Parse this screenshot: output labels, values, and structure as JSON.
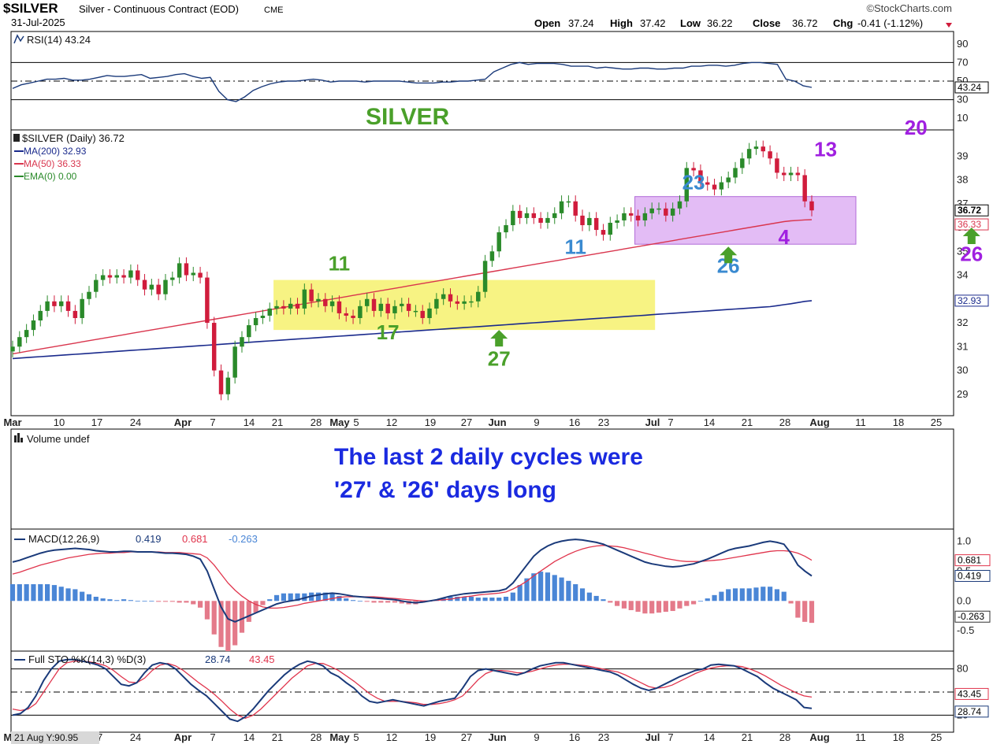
{
  "header": {
    "symbol": "$SILVER",
    "name": "Silver - Continuous Contract (EOD)",
    "exchange": "CME",
    "date": "31-Jul-2025",
    "brand": "©StockCharts.com",
    "open_label": "Open",
    "open": "37.24",
    "high_label": "High",
    "high": "37.42",
    "low_label": "Low",
    "low": "36.22",
    "close_label": "Close",
    "close": "36.72",
    "chg_label": "Chg",
    "chg": "-0.41 (-1.12%)"
  },
  "status": {
    "cursor_readout": "21 Aug Y:90.95"
  },
  "colors": {
    "up": "#2a8a2a",
    "down": "#d01c3c",
    "ma200": "#1a2a8c",
    "ma50": "#d9364e",
    "macd": "#1a3a7a",
    "signal": "#e0344c",
    "hist_pos": "#4a86d6",
    "hist_neg": "#e47a8a",
    "green_ann": "#4aa02a",
    "blue_ann": "#3a8ad0",
    "purple_ann": "#a020e0",
    "yellow_box": "#f4ef5a",
    "purple_box": "#d9a6f2"
  },
  "chart_data": [
    {
      "type": "line",
      "panel": "rsi",
      "legend": "RSI(14) 43.24",
      "ylim": [
        0,
        100
      ],
      "yticks": [
        "90",
        "70",
        "50",
        "30",
        "10"
      ],
      "levels": [
        70,
        30
      ],
      "last_tag": "43.24",
      "values": [
        42,
        46,
        48,
        50,
        52,
        52,
        53,
        51,
        51,
        52,
        54,
        56,
        55,
        55,
        56,
        57,
        53,
        54,
        55,
        57,
        58,
        55,
        53,
        54,
        39,
        30,
        28,
        33,
        40,
        44,
        47,
        49,
        50,
        50,
        51,
        52,
        51,
        49,
        50,
        50,
        50,
        49,
        50,
        50,
        50,
        50,
        49,
        48,
        48,
        48,
        49,
        49,
        50,
        50,
        51,
        52,
        60,
        64,
        68,
        70,
        68,
        69,
        69,
        69,
        68,
        66,
        66,
        66,
        64,
        65,
        64,
        63,
        63,
        64,
        64,
        63,
        63,
        64,
        64,
        66,
        66,
        67,
        67,
        66,
        67,
        69,
        70,
        70,
        69,
        68,
        52,
        50,
        45,
        43.24
      ]
    },
    {
      "type": "candlestick",
      "panel": "price",
      "title": "SILVER",
      "legend": {
        "main": "$SILVER (Daily) 36.72",
        "ma200": "MA(200) 32.93",
        "ma50": "MA(50) 36.33",
        "ema": "EMA(0) 0.00"
      },
      "ylim": [
        28.2,
        40.0
      ],
      "yticks": [
        "39",
        "38",
        "37",
        "36",
        "35",
        "34",
        "33",
        "32",
        "31",
        "30",
        "29"
      ],
      "last_close_tag": "36.72",
      "ma50_tag": "36.33",
      "ma200_tag": "32.93",
      "closes": [
        31.0,
        31.4,
        31.7,
        32.1,
        32.5,
        32.9,
        32.7,
        32.9,
        32.5,
        32.2,
        33.0,
        33.3,
        33.8,
        34.0,
        33.9,
        34.0,
        33.9,
        34.2,
        33.8,
        33.4,
        33.6,
        33.2,
        33.8,
        33.9,
        34.5,
        34.0,
        34.1,
        33.9,
        32.0,
        30.0,
        29.0,
        29.7,
        31.0,
        31.4,
        31.9,
        32.2,
        32.3,
        32.6,
        32.7,
        32.6,
        32.8,
        32.6,
        33.4,
        32.9,
        33.0,
        32.7,
        32.9,
        32.4,
        32.3,
        32.2,
        32.7,
        33.0,
        32.5,
        32.8,
        32.4,
        32.7,
        32.8,
        32.5,
        32.5,
        32.2,
        32.6,
        33.0,
        33.2,
        32.9,
        32.8,
        32.9,
        32.9,
        33.3,
        34.6,
        35.0,
        35.8,
        36.1,
        36.7,
        36.4,
        36.6,
        36.4,
        36.2,
        36.4,
        36.6,
        37.1,
        37.1,
        36.5,
        36.1,
        36.4,
        35.9,
        35.7,
        36.2,
        36.3,
        36.6,
        36.5,
        36.3,
        36.6,
        36.8,
        36.8,
        36.5,
        36.8,
        37.1,
        38.5,
        38.4,
        37.9,
        37.8,
        37.6,
        37.9,
        38.1,
        38.5,
        38.9,
        39.3,
        39.4,
        39.2,
        38.9,
        38.3,
        38.2,
        38.3,
        38.2,
        37.1,
        36.72
      ],
      "ma50": [
        30.7,
        30.75,
        30.8,
        30.85,
        30.9,
        30.95,
        31.0,
        31.05,
        31.1,
        31.15,
        31.2,
        31.25,
        31.3,
        31.35,
        31.4,
        31.45,
        31.5,
        31.55,
        31.6,
        31.65,
        31.7,
        31.75,
        31.8,
        31.85,
        31.9,
        31.95,
        32.0,
        32.05,
        32.1,
        32.15,
        32.2,
        32.25,
        32.3,
        32.35,
        32.4,
        32.45,
        32.5,
        32.55,
        32.6,
        32.65,
        32.7,
        32.75,
        32.8,
        32.85,
        32.9,
        32.95,
        33.0,
        33.05,
        33.1,
        33.15,
        33.2,
        33.25,
        33.3,
        33.35,
        33.4,
        33.45,
        33.5,
        33.55,
        33.6,
        33.65,
        33.7,
        33.75,
        33.8,
        33.85,
        33.9,
        33.95,
        34.0,
        34.05,
        34.1,
        34.15,
        34.2,
        34.25,
        34.3,
        34.35,
        34.4,
        34.45,
        34.5,
        34.55,
        34.6,
        34.65,
        34.7,
        34.75,
        34.8,
        34.85,
        34.9,
        34.95,
        35.0,
        35.05,
        35.1,
        35.15,
        35.2,
        35.25,
        35.3,
        35.35,
        35.4,
        35.45,
        35.5,
        35.55,
        35.6,
        35.65,
        35.7,
        35.75,
        35.8,
        35.85,
        35.9,
        35.95,
        36.0,
        36.05,
        36.1,
        36.15,
        36.2,
        36.25,
        36.28,
        36.3,
        36.32,
        36.33
      ],
      "ma200": [
        30.5,
        30.52,
        30.54,
        30.56,
        30.58,
        30.6,
        30.62,
        30.64,
        30.66,
        30.68,
        30.7,
        30.72,
        30.74,
        30.76,
        30.78,
        30.8,
        30.82,
        30.84,
        30.86,
        30.88,
        30.9,
        30.92,
        30.94,
        30.96,
        30.98,
        31.0,
        31.02,
        31.04,
        31.06,
        31.08,
        31.1,
        31.12,
        31.14,
        31.16,
        31.18,
        31.2,
        31.22,
        31.24,
        31.26,
        31.28,
        31.3,
        31.32,
        31.34,
        31.36,
        31.38,
        31.4,
        31.42,
        31.44,
        31.46,
        31.48,
        31.5,
        31.52,
        31.54,
        31.56,
        31.58,
        31.6,
        31.62,
        31.64,
        31.66,
        31.68,
        31.7,
        31.72,
        31.74,
        31.76,
        31.78,
        31.8,
        31.82,
        31.84,
        31.86,
        31.88,
        31.9,
        31.92,
        31.94,
        31.96,
        31.98,
        32.0,
        32.02,
        32.04,
        32.06,
        32.08,
        32.1,
        32.12,
        32.14,
        32.16,
        32.18,
        32.2,
        32.22,
        32.24,
        32.26,
        32.28,
        32.3,
        32.32,
        32.34,
        32.36,
        32.38,
        32.4,
        32.42,
        32.44,
        32.46,
        32.48,
        32.5,
        32.52,
        32.54,
        32.56,
        32.58,
        32.6,
        32.62,
        32.64,
        32.66,
        32.68,
        32.72,
        32.76,
        32.8,
        32.85,
        32.9,
        32.93
      ],
      "boxes": [
        {
          "name": "yellow-range-box",
          "i0": 38,
          "i1": 92,
          "y0": 31.7,
          "y1": 33.8,
          "color": "#f4ef5a"
        },
        {
          "name": "purple-range-box",
          "i0": 90,
          "i1": 154,
          "y0": 35.3,
          "y1": 37.3,
          "color": "#d9a6f2"
        }
      ],
      "labels": [
        {
          "text": "11",
          "i": 47,
          "y": 34.2,
          "color": "#4aa02a",
          "size": 26
        },
        {
          "text": "17",
          "i": 54,
          "y": 31.3,
          "color": "#4aa02a",
          "size": 26
        },
        {
          "text": "27",
          "i": 70,
          "y": 30.2,
          "color": "#4aa02a",
          "size": 26
        },
        {
          "text": "11",
          "i": 81,
          "y": 34.9,
          "color": "#3a8ad0",
          "size": 26
        },
        {
          "text": "23",
          "i": 98,
          "y": 37.6,
          "color": "#3a8ad0",
          "size": 26
        },
        {
          "text": "26",
          "i": 103,
          "y": 34.1,
          "color": "#3a8ad0",
          "size": 26
        },
        {
          "text": "4",
          "i": 111,
          "y": 35.3,
          "color": "#a020e0",
          "size": 26
        },
        {
          "text": "13",
          "i": 117,
          "y": 39.0,
          "color": "#a020e0",
          "size": 26
        },
        {
          "text": "20",
          "i": 130,
          "y": 39.9,
          "color": "#a020e0",
          "size": 26
        },
        {
          "text": "26",
          "i": 138,
          "y": 34.6,
          "color": "#a020e0",
          "size": 26
        }
      ],
      "arrows": [
        {
          "name": "cycle-low-arrow-27",
          "i": 70,
          "y": 31.7,
          "color": "#4aa02a"
        },
        {
          "name": "cycle-low-arrow-26",
          "i": 103,
          "y": 35.2,
          "color": "#4aa02a"
        },
        {
          "name": "cycle-low-arrow-26b",
          "i": 138,
          "y": 36.0,
          "color": "#4aa02a"
        }
      ],
      "xticks": [
        "Mar",
        "10",
        "17",
        "24",
        "Apr",
        "7",
        "14",
        "21",
        "28",
        "May",
        "5",
        "12",
        "19",
        "27",
        "Jun",
        "9",
        "16",
        "23",
        "Jul",
        "7",
        "14",
        "21",
        "28",
        "Aug",
        "11",
        "18",
        "25"
      ]
    },
    {
      "type": "bar",
      "panel": "volume",
      "legend": "Volume undef",
      "annotation_line1": "The last 2 daily cycles were",
      "annotation_line2": "'27' & '26' days long"
    },
    {
      "type": "line",
      "panel": "macd",
      "legend_prefix": "MACD(12,26,9)",
      "legend_macd": "0.419",
      "legend_signal": "0.681",
      "legend_hist": "-0.263",
      "ylim": [
        -0.8,
        1.15
      ],
      "yticks": [
        "1.0",
        "0.5",
        "0.0",
        "-0.5"
      ],
      "macd": [
        0.65,
        0.68,
        0.72,
        0.76,
        0.8,
        0.83,
        0.85,
        0.86,
        0.87,
        0.88,
        0.87,
        0.86,
        0.84,
        0.83,
        0.82,
        0.82,
        0.83,
        0.83,
        0.82,
        0.82,
        0.82,
        0.81,
        0.8,
        0.8,
        0.79,
        0.78,
        0.75,
        0.7,
        0.5,
        0.2,
        -0.1,
        -0.3,
        -0.35,
        -0.3,
        -0.25,
        -0.2,
        -0.15,
        -0.1,
        -0.05,
        -0.02,
        0.0,
        0.02,
        0.05,
        0.08,
        0.1,
        0.12,
        0.13,
        0.12,
        0.1,
        0.08,
        0.07,
        0.06,
        0.05,
        0.04,
        0.03,
        0.02,
        0.0,
        -0.02,
        -0.03,
        -0.02,
        0.0,
        0.02,
        0.05,
        0.08,
        0.1,
        0.12,
        0.13,
        0.14,
        0.15,
        0.16,
        0.17,
        0.2,
        0.3,
        0.45,
        0.6,
        0.75,
        0.85,
        0.92,
        0.97,
        1.0,
        1.02,
        1.03,
        1.02,
        1.0,
        0.98,
        0.95,
        0.9,
        0.85,
        0.8,
        0.75,
        0.7,
        0.65,
        0.62,
        0.6,
        0.58,
        0.57,
        0.58,
        0.6,
        0.62,
        0.66,
        0.7,
        0.75,
        0.8,
        0.85,
        0.88,
        0.9,
        0.92,
        0.95,
        0.98,
        1.0,
        0.98,
        0.95,
        0.8,
        0.6,
        0.5,
        0.419
      ],
      "signal": [
        0.45,
        0.48,
        0.52,
        0.56,
        0.6,
        0.63,
        0.66,
        0.69,
        0.72,
        0.74,
        0.76,
        0.78,
        0.79,
        0.8,
        0.8,
        0.81,
        0.81,
        0.82,
        0.82,
        0.82,
        0.82,
        0.82,
        0.81,
        0.81,
        0.81,
        0.8,
        0.79,
        0.78,
        0.72,
        0.6,
        0.45,
        0.3,
        0.18,
        0.08,
        0.0,
        -0.06,
        -0.1,
        -0.12,
        -0.12,
        -0.11,
        -0.09,
        -0.07,
        -0.04,
        -0.02,
        0.0,
        0.02,
        0.04,
        0.06,
        0.07,
        0.07,
        0.07,
        0.07,
        0.07,
        0.06,
        0.05,
        0.04,
        0.03,
        0.02,
        0.01,
        0.0,
        0.0,
        0.01,
        0.02,
        0.03,
        0.05,
        0.07,
        0.08,
        0.1,
        0.11,
        0.12,
        0.13,
        0.15,
        0.2,
        0.26,
        0.33,
        0.42,
        0.5,
        0.58,
        0.66,
        0.72,
        0.78,
        0.83,
        0.87,
        0.9,
        0.92,
        0.93,
        0.92,
        0.91,
        0.89,
        0.86,
        0.83,
        0.8,
        0.77,
        0.74,
        0.71,
        0.69,
        0.67,
        0.66,
        0.66,
        0.66,
        0.67,
        0.68,
        0.69,
        0.71,
        0.73,
        0.75,
        0.77,
        0.79,
        0.81,
        0.83,
        0.84,
        0.84,
        0.83,
        0.8,
        0.75,
        0.681
      ]
    },
    {
      "type": "line",
      "panel": "stochastic",
      "legend_prefix": "Full STO %K(14,3) %D(3)",
      "legend_k": "28.74",
      "legend_d": "43.45",
      "ylim": [
        0,
        100
      ],
      "yticks": [
        "80",
        "50",
        "20"
      ],
      "levels": [
        80,
        20
      ],
      "k_tag": "28.74",
      "d_tag": "43.45",
      "k": [
        20,
        22,
        30,
        45,
        65,
        80,
        90,
        92,
        92,
        90,
        88,
        85,
        80,
        70,
        60,
        58,
        62,
        75,
        85,
        88,
        86,
        80,
        70,
        60,
        52,
        45,
        35,
        25,
        15,
        12,
        18,
        28,
        40,
        52,
        62,
        72,
        80,
        86,
        90,
        88,
        84,
        75,
        70,
        62,
        55,
        45,
        38,
        36,
        38,
        40,
        38,
        36,
        34,
        32,
        35,
        38,
        40,
        42,
        55,
        70,
        78,
        80,
        78,
        76,
        74,
        72,
        75,
        80,
        84,
        86,
        88,
        88,
        86,
        84,
        82,
        80,
        78,
        76,
        72,
        66,
        60,
        55,
        52,
        55,
        60,
        65,
        70,
        74,
        78,
        80,
        85,
        86,
        85,
        84,
        80,
        75,
        70,
        62,
        55,
        50,
        45,
        40,
        30,
        28.74
      ],
      "d": [
        28,
        26,
        28,
        35,
        50,
        65,
        80,
        88,
        90,
        90,
        89,
        87,
        84,
        78,
        70,
        63,
        62,
        68,
        78,
        85,
        87,
        84,
        78,
        70,
        62,
        55,
        47,
        38,
        28,
        20,
        16,
        20,
        28,
        38,
        48,
        58,
        68,
        76,
        84,
        87,
        87,
        83,
        78,
        71,
        64,
        56,
        48,
        42,
        38,
        38,
        38,
        37,
        36,
        34,
        34,
        35,
        37,
        40,
        45,
        55,
        66,
        74,
        78,
        78,
        77,
        75,
        75,
        77,
        80,
        83,
        85,
        86,
        86,
        85,
        84,
        82,
        80,
        78,
        76,
        72,
        67,
        62,
        57,
        55,
        56,
        59,
        64,
        69,
        74,
        78,
        81,
        83,
        84,
        84,
        83,
        80,
        76,
        71,
        65,
        59,
        54,
        49,
        45,
        43.45
      ]
    }
  ]
}
